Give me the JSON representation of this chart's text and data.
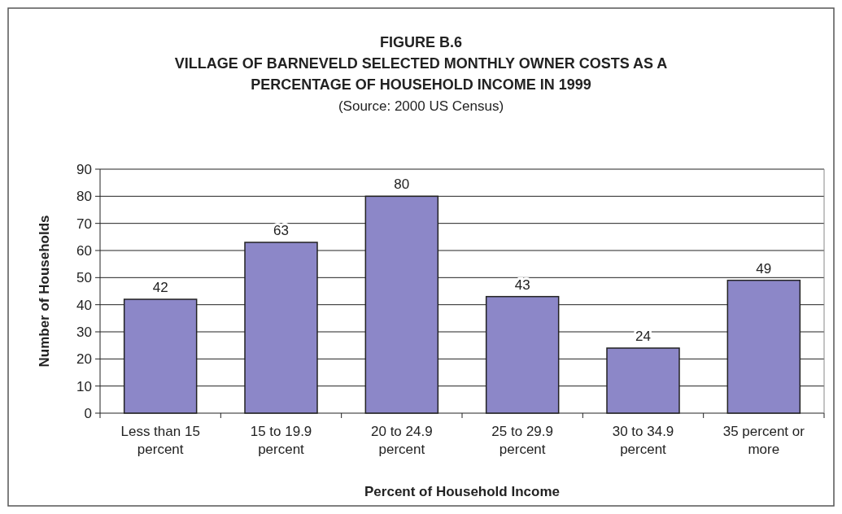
{
  "chart_data": {
    "type": "bar",
    "title": "FIGURE B.6\nVILLAGE OF BARNEVELD SELECTED MONTHLY OWNER COSTS AS A\nPERCENTAGE OF HOUSEHOLD INCOME IN 1999",
    "annotations": [
      "(Source:  2000 US Census)"
    ],
    "xlabel": "Percent of Household Income",
    "ylabel": "Number of Households",
    "categories": [
      "Less than 15 percent",
      "15 to 19.9 percent",
      "20 to 24.9 percent",
      "25 to 29.9 percent",
      "30 to 34.9 percent",
      "35 percent or more"
    ],
    "values": [
      42,
      63,
      80,
      43,
      24,
      49
    ],
    "color": "#8c87c8",
    "ylim": [
      0,
      90
    ],
    "yticks": [
      0,
      10,
      20,
      30,
      40,
      50,
      60,
      70,
      80,
      90
    ],
    "grid": "y",
    "data_labels": true
  }
}
